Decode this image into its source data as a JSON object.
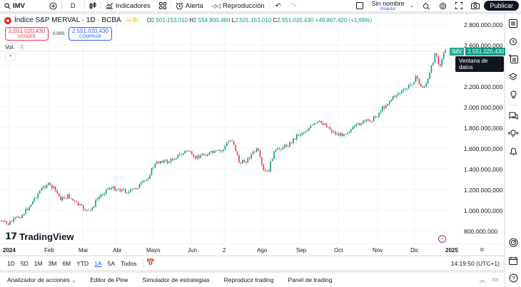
{
  "toolbar": {
    "symbol": "IMV",
    "interval": "D",
    "indicators_label": "Indicadores",
    "alert_label": "Alerta",
    "replay_label": "Reproducción",
    "layout_name": "Sin nombre",
    "save_label": "Guardar",
    "publish_label": "Publicar"
  },
  "legend": {
    "title": "Índice S&P MERVAL · 1D · BCBA",
    "badge": "D",
    "o_label": "O",
    "o": "2.501.153,010",
    "h_label": "H",
    "h": "2.554.800,460",
    "l_label": "L",
    "l": "2.501.153,010",
    "c_label": "C",
    "c": "2.551.020,430",
    "change": "+49.867,420 (+1,99%)"
  },
  "trade": {
    "sell_price": "2.551.020,430",
    "sell_label": "VENDER",
    "spread": "0,000",
    "buy_price": "2.551.020,430",
    "buy_label": "COMPRAR"
  },
  "volume": {
    "label": "Vol.",
    "warning": "!"
  },
  "price_tag": {
    "symbol": "IMV",
    "value": "2.551.020,430"
  },
  "tooltip": "Ventana de datos",
  "branding": "TradingView",
  "chart_data": {
    "type": "candlestick",
    "title": "Índice S&P MERVAL · 1D · BCBA",
    "y_ticks": [
      "2.800.000,000",
      "2.600.000,000",
      "2.400.000,000",
      "2.200.000,000",
      "2.000.000,000",
      "1.800.000,000",
      "1.600.000,000",
      "1.400.000,000",
      "1.200.000,000",
      "1.000.000,000",
      "800.000,000"
    ],
    "x_ticks": [
      "2024",
      "Feb",
      "Mar",
      "Abr",
      "Mayo",
      "Jun",
      "2",
      "Ago",
      "Sep",
      "Oct",
      "Nov",
      "Dic",
      "2025"
    ],
    "last_close": 2551020.43,
    "ylim": [
      780000,
      2850000
    ]
  },
  "range_bar": {
    "ranges": [
      "1D",
      "5D",
      "1M",
      "3M",
      "6M",
      "YTD",
      "1A",
      "5A",
      "Todos"
    ],
    "active": "1A",
    "time": "14:19:50 (UTC+1)"
  },
  "bottom_tabs": [
    "Analizador de acciones",
    "Editor de Pine",
    "Simulador de estrategias",
    "Reproducir trading",
    "Panel de trading"
  ],
  "colors": {
    "up": "#089981",
    "down": "#f23645",
    "accent": "#2962ff"
  }
}
